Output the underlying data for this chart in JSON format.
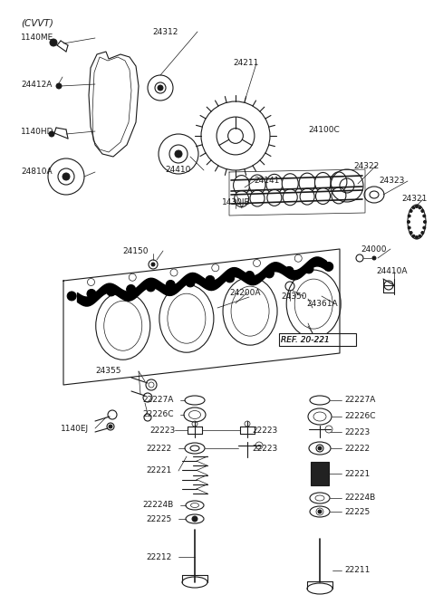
{
  "bg_color": "#ffffff",
  "fig_width": 4.8,
  "fig_height": 6.57,
  "dpi": 100,
  "dark": "#1a1a1a",
  "gray": "#555555",
  "lw_thin": 0.5,
  "lw_med": 0.8,
  "lw_thick": 1.2,
  "fs_label": 6.5
}
